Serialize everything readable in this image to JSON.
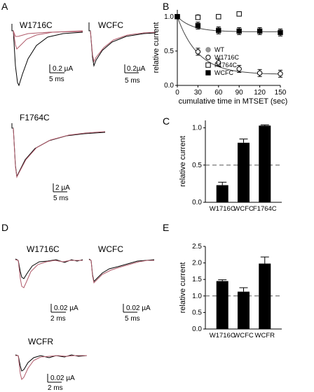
{
  "panels": {
    "a": {
      "letter": "A"
    },
    "b": {
      "letter": "B"
    },
    "c": {
      "letter": "C"
    },
    "d": {
      "letter": "D"
    },
    "e": {
      "letter": "E"
    }
  },
  "traces": {
    "a_w1716c": {
      "label": "W1716C",
      "scale_amp": "0.2 µA",
      "scale_time": "5 ms"
    },
    "a_wcfc": {
      "label": "WCFC",
      "scale_amp": "0.2µA",
      "scale_time": "5 ms"
    },
    "a_f1764c": {
      "label": "F1764C",
      "scale_amp": "2 µA",
      "scale_time": "5 ms"
    },
    "d_w1716c": {
      "label": "W1716C",
      "scale_amp": "0.02 µA",
      "scale_time": "2 ms"
    },
    "d_wcfc": {
      "label": "WCFC",
      "scale_amp": "0.02 µA",
      "scale_time": "5 ms"
    },
    "d_wcfr": {
      "label": "WCFR",
      "scale_amp": "0.02 µA",
      "scale_time": "2 ms"
    }
  },
  "colors": {
    "control": "#000000",
    "mtset": "#b05a6a",
    "dash": "#555555"
  },
  "chart_data": [
    {
      "id": "b",
      "type": "scatter",
      "xlabel": "cumulative time in MTSET (sec)",
      "ylabel": "relative current",
      "xlim": [
        0,
        150
      ],
      "ylim": [
        0,
        1.1
      ],
      "xticks": [
        "0",
        "30",
        "60",
        "90",
        "120",
        "150"
      ],
      "yticks": [
        "0.0",
        "0.5",
        "1.0"
      ],
      "legend_position": "bottom-left",
      "series": [
        {
          "name": "WT",
          "marker": "filled-gray-circle",
          "x": [
            0,
            30,
            60,
            90
          ],
          "y": [
            1.0,
            1.0,
            1.0,
            1.04
          ]
        },
        {
          "name": "W1716C",
          "marker": "open-circle",
          "x": [
            0,
            30,
            60,
            90,
            120,
            150
          ],
          "y": [
            1.0,
            0.49,
            0.33,
            0.24,
            0.18,
            0.17
          ]
        },
        {
          "name": "F1764C",
          "marker": "open-square",
          "x": [
            0,
            30,
            60,
            90
          ],
          "y": [
            1.0,
            0.99,
            1.0,
            1.04
          ]
        },
        {
          "name": "WCFC",
          "marker": "filled-black-square",
          "x": [
            0,
            30,
            60,
            90,
            120,
            150
          ],
          "y": [
            1.0,
            0.87,
            0.8,
            0.79,
            0.79,
            0.77
          ]
        }
      ]
    },
    {
      "id": "c",
      "type": "bar",
      "categories": [
        "W1716C",
        "WCFC",
        "F1764C"
      ],
      "values": [
        0.23,
        0.8,
        1.03
      ],
      "errors": [
        0.04,
        0.05,
        0.01
      ],
      "ylabel": "relative current",
      "ylim": [
        0,
        1.1
      ],
      "yticks": [
        "0.0",
        "0.5",
        "1.0"
      ],
      "reference_line": 0.5
    },
    {
      "id": "e",
      "type": "bar",
      "categories": [
        "W1716C",
        "WCFC",
        "WCFR"
      ],
      "values": [
        1.45,
        1.13,
        1.98
      ],
      "errors": [
        0.04,
        0.12,
        0.2
      ],
      "ylabel": "relative current",
      "ylim": [
        0,
        2.5
      ],
      "yticks": [
        "0.0",
        "0.5",
        "1.0",
        "1.5",
        "2.0",
        "2.5"
      ],
      "reference_line": 1.0
    }
  ]
}
